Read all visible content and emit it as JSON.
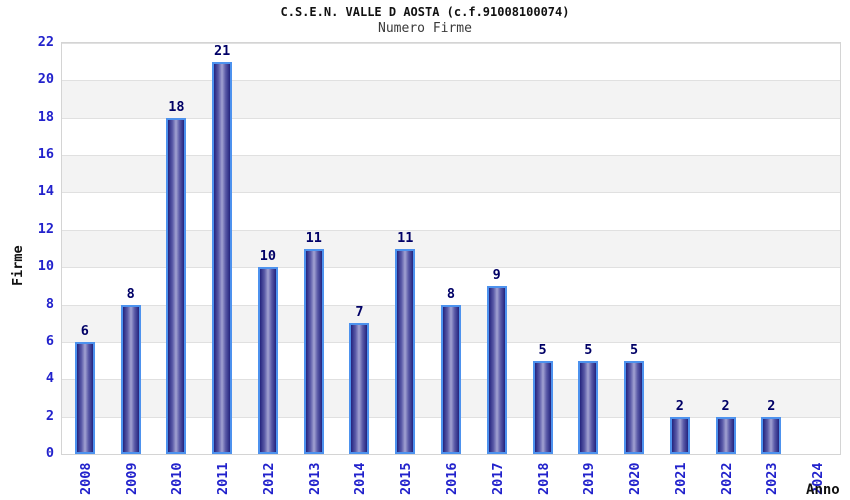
{
  "chart_data": {
    "type": "bar",
    "title": "C.S.E.N. VALLE D AOSTA (c.f.91008100074)",
    "subtitle": "Numero Firme",
    "xlabel": "Anno",
    "ylabel": "Firme",
    "categories": [
      "2008",
      "2009",
      "2010",
      "2011",
      "2012",
      "2013",
      "2014",
      "2015",
      "2016",
      "2017",
      "2018",
      "2019",
      "2020",
      "2021",
      "2022",
      "2023",
      "2024"
    ],
    "values": [
      6,
      8,
      18,
      21,
      10,
      11,
      7,
      11,
      8,
      9,
      5,
      5,
      5,
      2,
      2,
      2,
      0
    ],
    "ylim": [
      0,
      22
    ],
    "ytick_step": 2,
    "grid": true,
    "band_shading": "alternating 2-unit horizontal stripes",
    "legend": "none",
    "value_labels": "above bars, hidden for zero",
    "colors": {
      "bar_fill_dark": "#23237d",
      "bar_fill_light": "#a2a2d2",
      "bar_border": "#4d92ee",
      "axis_text_blue": "#2222cc",
      "value_label": "#000066",
      "band_gray": "#f3f3f3",
      "gridline": "#e0e0e0",
      "plot_border": "#d4d4d4",
      "title_color": "#111111",
      "subtitle_color": "#3a3a3a"
    }
  }
}
